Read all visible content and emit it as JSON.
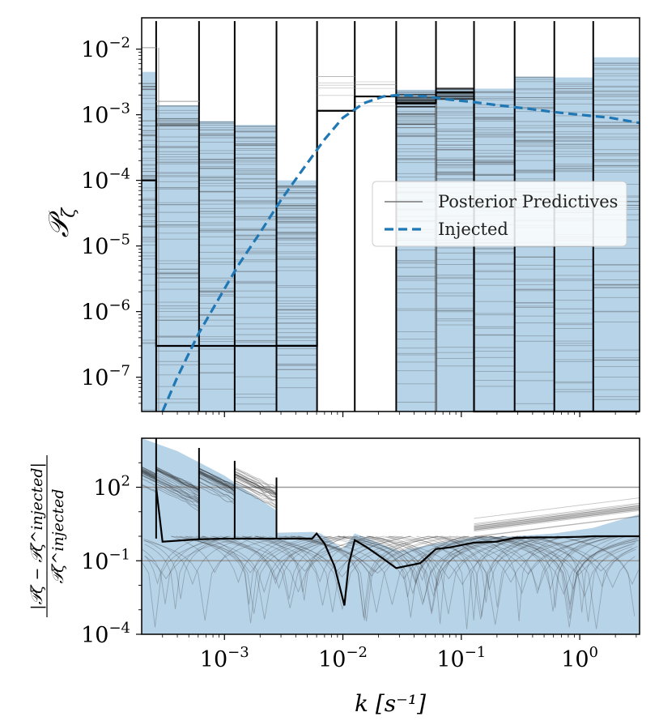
{
  "chart_data": [
    {
      "type": "step",
      "panel": "top",
      "ylabel": "𝒫",
      "ylabel_sub": "ζ",
      "xscale": "log",
      "yscale": "log",
      "xlim": [
        0.0002,
        3.2
      ],
      "ylim": [
        3e-08,
        0.03
      ],
      "yticks": [
        {
          "base": "10",
          "exp": "−2",
          "value": 0.01
        },
        {
          "base": "10",
          "exp": "−3",
          "value": 0.001
        },
        {
          "base": "10",
          "exp": "−4",
          "value": 0.0001
        },
        {
          "base": "10",
          "exp": "−5",
          "value": 1e-05
        },
        {
          "base": "10",
          "exp": "−6",
          "value": 1e-06
        },
        {
          "base": "10",
          "exp": "−7",
          "value": 1e-07
        }
      ],
      "bin_edges": [
        0.0002,
        0.000265,
        0.00061,
        0.00122,
        0.00275,
        0.00605,
        0.0126,
        0.0282,
        0.0611,
        0.128,
        0.282,
        0.61,
        1.3,
        3.2
      ],
      "median_values": [
        0.0001,
        3e-07,
        3e-07,
        3e-07,
        3e-07,
        0.00115,
        0.0019,
        0.0015,
        0.0022,
        3e-08,
        3e-08,
        3e-08,
        3e-08
      ],
      "band_max_values": [
        0.0045,
        0.0014,
        0.0008,
        0.0007,
        0.0001,
        0.0,
        0.0,
        0.0024,
        0.0025,
        0.0025,
        0.0038,
        0.0037,
        0.0075
      ],
      "injected": {
        "name": "Injected",
        "style": "dashed",
        "color": "#1f77b4",
        "x": [
          0.0003,
          0.0004,
          0.0006,
          0.0009,
          0.0013,
          0.002,
          0.003,
          0.0045,
          0.007,
          0.01,
          0.015,
          0.022,
          0.03,
          0.05,
          0.08,
          0.13,
          0.2,
          0.35,
          0.6,
          1.0,
          1.8,
          3.2
        ],
        "y": [
          3e-08,
          1e-07,
          4.5e-07,
          1.6e-06,
          5e-06,
          1.6e-05,
          5e-05,
          0.00014,
          0.00042,
          0.0009,
          0.0015,
          0.0019,
          0.002,
          0.0019,
          0.0017,
          0.00155,
          0.0014,
          0.00125,
          0.0011,
          0.001,
          0.0009,
          0.00075
        ]
      },
      "legend": {
        "position": "center-right",
        "entries": [
          {
            "label": "Posterior Predictives",
            "style": "line",
            "color": "#777777"
          },
          {
            "label": "Injected",
            "style": "dashed",
            "color": "#1f77b4"
          }
        ]
      }
    },
    {
      "type": "line",
      "panel": "bottom",
      "ylabel_numerator": "|𝒫ζ − 𝒫ζ^injected|",
      "ylabel_denominator": "𝒫ζ^injected",
      "xlabel": "k [s⁻¹]",
      "xscale": "log",
      "yscale": "log",
      "xlim": [
        0.0002,
        3.2
      ],
      "ylim": [
        0.0001,
        10000
      ],
      "xticks": [
        {
          "base": "10",
          "exp": "−3",
          "value": 0.001
        },
        {
          "base": "10",
          "exp": "−2",
          "value": 0.01
        },
        {
          "base": "10",
          "exp": "−1",
          "value": 0.1
        },
        {
          "base": "10",
          "exp": "0",
          "value": 1
        }
      ],
      "yticks": [
        {
          "base": "10",
          "exp": "2",
          "value": 100
        },
        {
          "base": "10",
          "exp": "−1",
          "value": 0.1
        },
        {
          "base": "10",
          "exp": "−4",
          "value": 0.0001
        }
      ],
      "reference_lines": [
        100,
        0.1
      ],
      "median": {
        "x": [
          0.000265,
          0.0003,
          0.0006,
          0.001,
          0.002,
          0.0027,
          0.0055,
          0.006,
          0.007,
          0.0085,
          0.0103,
          0.0112,
          0.0126,
          0.016,
          0.022,
          0.0282,
          0.045,
          0.061,
          0.08,
          0.128,
          0.2,
          0.282,
          0.45,
          0.61,
          1.0,
          1.3,
          3.2
        ],
        "y": [
          100,
          0.6,
          0.75,
          0.8,
          0.8,
          0.8,
          0.8,
          1.3,
          0.5,
          0.06,
          0.0015,
          0.07,
          0.7,
          0.35,
          0.12,
          0.05,
          0.08,
          0.3,
          0.35,
          0.55,
          0.6,
          0.85,
          0.9,
          0.9,
          0.95,
          1.0,
          1.0
        ]
      }
    }
  ]
}
